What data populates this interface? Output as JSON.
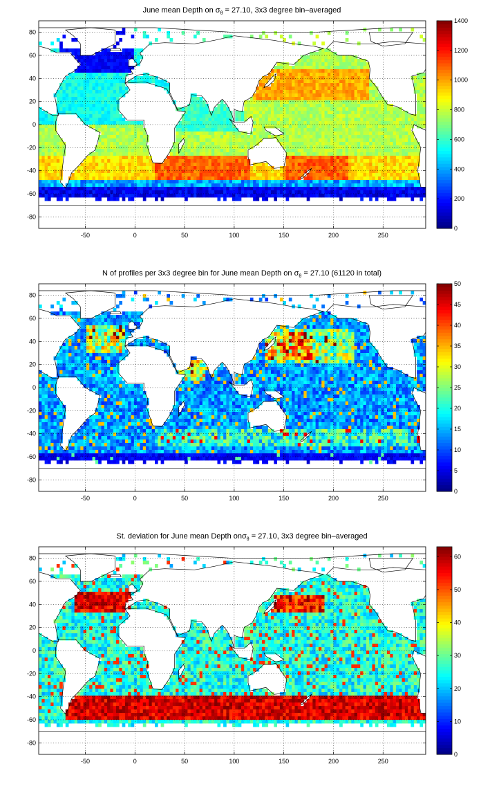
{
  "panels": [
    {
      "title": {
        "pre": "June mean Depth on ",
        "sym": "σ",
        "sub": "θ",
        "post": " = 27.10, 3x3 degree bin–averaged"
      },
      "colorbar": {
        "min": 0,
        "max": 1400,
        "ticks": [
          "0",
          "200",
          "400",
          "600",
          "800",
          "1000",
          "1200",
          "1400"
        ]
      },
      "xticks": [
        "-50",
        "0",
        "50",
        "100",
        "150",
        "200",
        "250"
      ],
      "yticks": [
        "80",
        "60",
        "40",
        "20",
        "0",
        "-20",
        "-40",
        "-60",
        "-80"
      ]
    },
    {
      "title": {
        "pre": "N of profiles per 3x3 degree bin for June mean Depth on ",
        "sym": "σ",
        "sub": "θ",
        "post": " = 27.10 (61120 in total)"
      },
      "colorbar": {
        "min": 0,
        "max": 50,
        "ticks": [
          "0",
          "5",
          "10",
          "15",
          "20",
          "25",
          "30",
          "35",
          "40",
          "45",
          "50"
        ]
      },
      "xticks": [
        "-50",
        "0",
        "50",
        "100",
        "150",
        "200",
        "250"
      ],
      "yticks": [
        "80",
        "60",
        "40",
        "20",
        "0",
        "-20",
        "-40",
        "-60",
        "-80"
      ]
    },
    {
      "title": {
        "pre": "St. deviation for June mean Depth on",
        "sym": "σ",
        "sub": "θ",
        "post": " = 27.10, 3x3 degree bin–averaged"
      },
      "colorbar": {
        "min": 0,
        "max": 63,
        "ticks": [
          "0",
          "10",
          "20",
          "30",
          "40",
          "50",
          "60"
        ]
      },
      "xticks": [
        "-50",
        "0",
        "50",
        "100",
        "150",
        "200",
        "250"
      ],
      "yticks": [
        "80",
        "60",
        "40",
        "20",
        "0",
        "-20",
        "-40",
        "-60",
        "-80"
      ]
    }
  ],
  "axes": {
    "xlim": [
      -97,
      293
    ],
    "ylim": [
      -90,
      90
    ],
    "grid": "dotted",
    "colormap": "jet"
  }
}
